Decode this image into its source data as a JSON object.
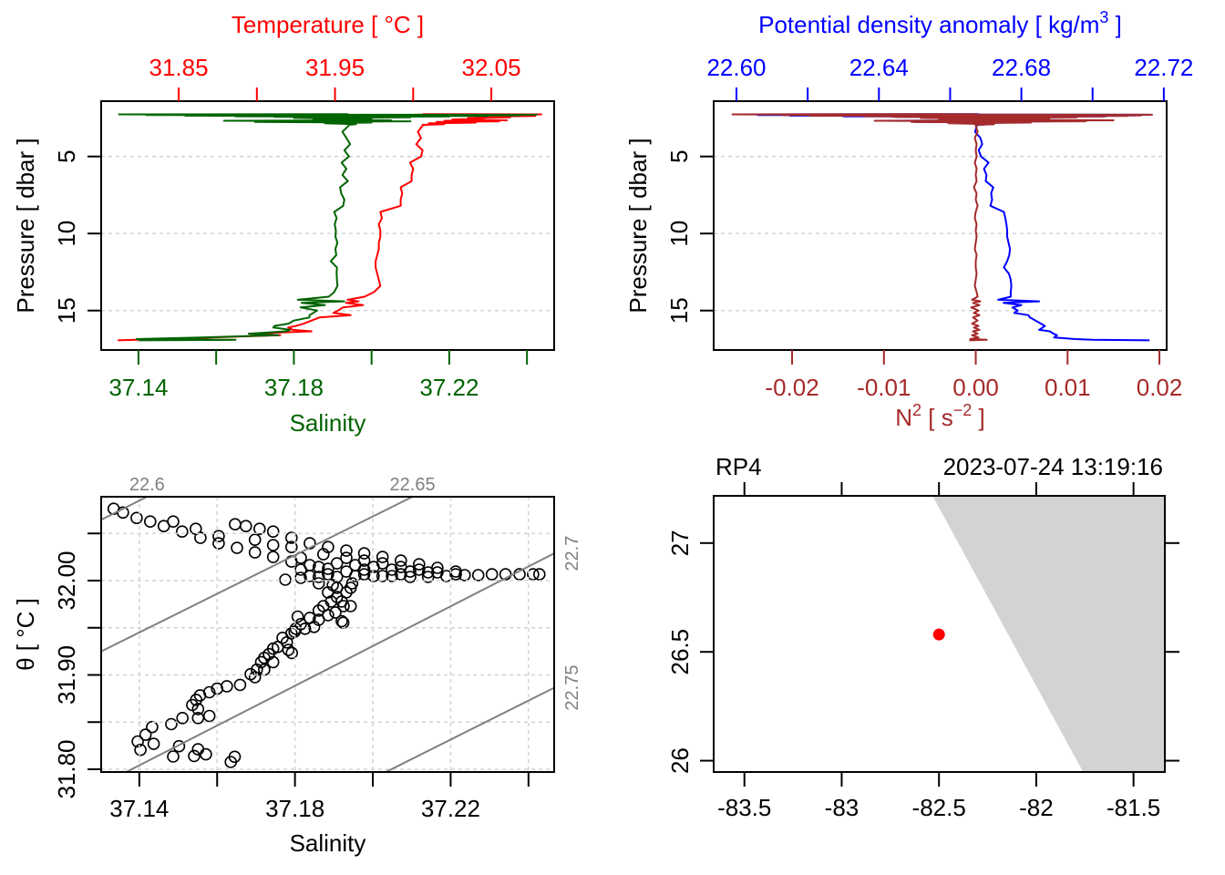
{
  "chart_data": [
    {
      "id": "temperature-salinity-profile",
      "type": "line",
      "ylabel": "Pressure [ dbar ]",
      "ylim": [
        17.56,
        1.41
      ],
      "yticks": [
        5,
        10,
        15
      ],
      "ytick_labels": [
        "5",
        "10",
        "15"
      ],
      "grid": "y",
      "x_top": {
        "label_parts": [
          {
            "text": "Temperature [ °C ]"
          }
        ],
        "color": "#FF0000",
        "lim": [
          31.8004,
          32.0902
        ],
        "ticks": [
          31.85,
          31.9,
          31.95,
          32.0,
          32.05
        ],
        "tick_labels": [
          "31.85",
          "",
          "31.95",
          "",
          "32.05"
        ]
      },
      "x_bottom": {
        "label_parts": [
          {
            "text": "Salinity"
          }
        ],
        "color": "#006400",
        "lim": [
          37.1304,
          37.247
        ],
        "ticks": [
          37.14,
          37.16,
          37.18,
          37.2,
          37.22,
          37.24
        ],
        "tick_labels": [
          "37.14",
          "",
          "37.18",
          "",
          "37.22",
          ""
        ]
      },
      "pressure": [
        2.25,
        2.27,
        2.29,
        2.31,
        2.33,
        2.35,
        2.37,
        2.39,
        2.41,
        2.43,
        2.46,
        2.5,
        2.55,
        2.6,
        2.65,
        2.68,
        2.72,
        2.76,
        2.8,
        2.85,
        2.9,
        2.95,
        3.0,
        3.4,
        3.8,
        4.2,
        4.6,
        5.0,
        5.4,
        5.8,
        6.2,
        6.6,
        7.0,
        7.4,
        7.8,
        8.2,
        8.6,
        9.0,
        9.4,
        9.8,
        10.2,
        10.6,
        11.0,
        11.4,
        11.8,
        12.2,
        12.6,
        13.0,
        13.4,
        13.8,
        14.1,
        14.3,
        14.4,
        14.5,
        14.65,
        14.8,
        15.0,
        15.15,
        15.3,
        15.45,
        15.65,
        15.85,
        16.0,
        16.1,
        16.25,
        16.35,
        16.5,
        16.6,
        16.75,
        16.85,
        16.9,
        16.93
      ],
      "series": [
        {
          "name": "Temperature",
          "axis": "top",
          "color": "#FF0000",
          "values": [
            32.006,
            32.082,
            32.001,
            32.074,
            31.999,
            32.066,
            32.078,
            32.058,
            32.04,
            32.05,
            32.062,
            32.035,
            32.045,
            32.025,
            32.06,
            32.02,
            32.055,
            32.015,
            32.04,
            32.01,
            32.02,
            32.006,
            32.006,
            32.003,
            32.005,
            32.002,
            32.006,
            32.005,
            31.998,
            32.0,
            31.999,
            31.999,
            31.992,
            31.993,
            31.992,
            31.992,
            31.979,
            31.98,
            31.978,
            31.979,
            31.979,
            31.978,
            31.978,
            31.977,
            31.976,
            31.976,
            31.977,
            31.978,
            31.979,
            31.975,
            31.969,
            31.958,
            31.965,
            31.957,
            31.968,
            31.955,
            31.952,
            31.949,
            31.96,
            31.94,
            31.935,
            31.93,
            31.925,
            31.92,
            31.923,
            31.935,
            31.895,
            31.915,
            31.87,
            31.86,
            31.823,
            31.811
          ]
        },
        {
          "name": "Salinity",
          "axis": "bottom",
          "color": "#006400",
          "values": [
            37.194,
            37.135,
            37.2425,
            37.142,
            37.238,
            37.152,
            37.23,
            37.165,
            37.22,
            37.175,
            37.21,
            37.18,
            37.2,
            37.185,
            37.205,
            37.162,
            37.21,
            37.17,
            37.2,
            37.188,
            37.196,
            37.1941,
            37.1941,
            37.1925,
            37.1935,
            37.1945,
            37.193,
            37.1942,
            37.1923,
            37.1935,
            37.1925,
            37.1939,
            37.1919,
            37.1922,
            37.193,
            37.1927,
            37.1904,
            37.191,
            37.1905,
            37.1908,
            37.1907,
            37.1912,
            37.1907,
            37.1909,
            37.1895,
            37.1911,
            37.191,
            37.1911,
            37.1912,
            37.1904,
            37.189,
            37.181,
            37.193,
            37.182,
            37.188,
            37.1817,
            37.186,
            37.185,
            37.184,
            37.184,
            37.18,
            37.1786,
            37.175,
            37.1747,
            37.179,
            37.178,
            37.1684,
            37.176,
            37.156,
            37.1395,
            37.165,
            37.14
          ]
        }
      ]
    },
    {
      "id": "density-n2-profile",
      "type": "line",
      "ylabel": "Pressure [ dbar ]",
      "ylim": [
        17.56,
        1.41
      ],
      "yticks": [
        5,
        10,
        15
      ],
      "ytick_labels": [
        "5",
        "10",
        "15"
      ],
      "grid": "y",
      "x_top": {
        "label_parts": [
          {
            "text": "Potential density anomaly [ kg/m"
          },
          {
            "text": "3",
            "sup": true
          },
          {
            "text": " ]"
          }
        ],
        "color": "#0000FF",
        "lim": [
          22.5936,
          22.7208
        ],
        "ticks": [
          22.6,
          22.62,
          22.64,
          22.66,
          22.68,
          22.7,
          22.72
        ],
        "tick_labels": [
          "22.60",
          "",
          "22.64",
          "",
          "22.68",
          "",
          "22.72"
        ]
      },
      "x_bottom": {
        "label_parts": [
          {
            "text": "N"
          },
          {
            "text": "2",
            "sup": true
          },
          {
            "text": " [ s"
          },
          {
            "text": "−2",
            "sup": true
          },
          {
            "text": " ]"
          }
        ],
        "color": "#A52A2A",
        "lim": [
          -0.02854,
          0.02079
        ],
        "ticks": [
          -0.02,
          -0.01,
          0.0,
          0.01,
          0.02
        ],
        "tick_labels": [
          "-0.02",
          "-0.01",
          "0.00",
          "0.01",
          "0.02"
        ]
      },
      "pressure": [
        2.25,
        2.27,
        2.29,
        2.31,
        2.33,
        2.35,
        2.37,
        2.39,
        2.41,
        2.43,
        2.46,
        2.5,
        2.55,
        2.6,
        2.65,
        2.68,
        2.72,
        2.76,
        2.8,
        2.85,
        2.9,
        2.95,
        3.0,
        3.4,
        3.8,
        4.2,
        4.6,
        5.0,
        5.4,
        5.8,
        6.2,
        6.6,
        7.0,
        7.4,
        7.8,
        8.2,
        8.6,
        9.0,
        9.4,
        9.8,
        10.2,
        10.6,
        11.0,
        11.4,
        11.8,
        12.2,
        12.6,
        13.0,
        13.4,
        13.8,
        14.1,
        14.3,
        14.4,
        14.5,
        14.65,
        14.8,
        15.0,
        15.15,
        15.3,
        15.45,
        15.65,
        15.85,
        16.0,
        16.1,
        16.25,
        16.35,
        16.5,
        16.6,
        16.75,
        16.85,
        16.9,
        16.93
      ],
      "series": [
        {
          "name": "Potential density anomaly",
          "axis": "top",
          "color": "#0000FF",
          "values": [
            22.668,
            22.599,
            22.716,
            22.606,
            22.712,
            22.615,
            22.704,
            22.63,
            22.695,
            22.645,
            22.688,
            22.655,
            22.68,
            22.66,
            22.693,
            22.64,
            22.688,
            22.65,
            22.676,
            22.664,
            22.672,
            22.6675,
            22.6675,
            22.667,
            22.6685,
            22.669,
            22.668,
            22.6687,
            22.6708,
            22.6695,
            22.6702,
            22.67,
            22.6721,
            22.6715,
            22.6718,
            22.6713,
            22.6751,
            22.6755,
            22.6758,
            22.676,
            22.676,
            22.6764,
            22.6768,
            22.6766,
            22.676,
            22.6751,
            22.6765,
            22.677,
            22.6772,
            22.677,
            22.677,
            22.6735,
            22.685,
            22.675,
            22.68,
            22.6775,
            22.679,
            22.678,
            22.682,
            22.6824,
            22.684,
            22.6855,
            22.6866,
            22.686,
            22.685,
            22.688,
            22.689,
            22.69,
            22.6892,
            22.6951,
            22.7,
            22.716
          ]
        },
        {
          "name": "N2",
          "axis": "bottom",
          "color": "#A52A2A",
          "values": [
            0.0,
            -0.0265,
            0.0192,
            -0.021,
            0.018,
            -0.018,
            0.0165,
            -0.012,
            0.014,
            -0.009,
            0.011,
            -0.006,
            0.008,
            -0.004,
            0.015,
            -0.011,
            0.012,
            -0.007,
            0.006,
            -0.003,
            0.002,
            0.0,
            0.0,
            0.0002,
            -0.0001,
            0.0001,
            0.0,
            0.0001,
            -0.0001,
            0.0001,
            0.0,
            0.0001,
            -0.0002,
            0.0001,
            0.0,
            0.0002,
            0.0,
            -0.0001,
            0.0001,
            0.0,
            0.0001,
            0.0,
            -0.0001,
            0.0001,
            0.0,
            0.0,
            0.0001,
            0.0,
            -0.0001,
            0.0001,
            0.0002,
            -0.0004,
            0.0005,
            -0.0003,
            0.0004,
            -0.0005,
            0.0003,
            -0.0002,
            0.0004,
            -0.0003,
            0.0002,
            -0.0004,
            0.0003,
            -0.0002,
            0.0004,
            -0.0003,
            0.0002,
            -0.0004,
            0.0003,
            -0.0006,
            0.0012,
            -0.0007
          ]
        }
      ]
    },
    {
      "id": "ts-diagram",
      "type": "scatter",
      "xlabel_parts": [
        {
          "text": "Salinity"
        }
      ],
      "ylabel_parts": [
        {
          "text": "θ [ °C ]"
        }
      ],
      "xlim": [
        37.1302,
        37.2466
      ],
      "ylim": [
        31.7971,
        32.0889
      ],
      "xticks": [
        37.14,
        37.16,
        37.18,
        37.2,
        37.22,
        37.24
      ],
      "xtick_labels": [
        "37.14",
        "",
        "37.18",
        "",
        "37.22",
        ""
      ],
      "yticks": [
        31.8,
        31.85,
        31.9,
        31.95,
        32.0,
        32.05
      ],
      "ytick_labels": [
        "31.80",
        "",
        "31.90",
        "",
        "32.00",
        ""
      ],
      "grid": "xy",
      "isopycnal_color": "#808080",
      "isopycnals": [
        {
          "label": "22.6",
          "points": [
            [
              37.1,
              32.002
            ],
            [
              37.16,
              32.1262
            ]
          ]
        },
        {
          "label": "22.65",
          "points": [
            [
              37.1,
              31.863
            ],
            [
              37.25,
              32.1705
            ]
          ]
        },
        {
          "label": "22.7",
          "points": [
            [
              37.12,
              31.762
            ],
            [
              37.26,
              32.0571
            ]
          ]
        },
        {
          "label": "22.75",
          "points": [
            [
              37.19,
              31.7695
            ],
            [
              37.26,
              31.9141
            ]
          ]
        }
      ],
      "points": {
        "salinity": [
          37.1659,
          37.1625,
          37.16,
          37.158,
          37.1556,
          37.1546,
          37.1536,
          37.1551,
          37.158,
          37.1551,
          37.1511,
          37.1482,
          37.1433,
          37.1416,
          37.1396,
          37.1403,
          37.1437,
          37.1502,
          37.1487,
          37.1541,
          37.1551,
          37.1571,
          37.1635,
          37.1645,
          37.1697,
          37.1713,
          37.1744,
          37.1783,
          37.1792,
          37.1799,
          37.1802,
          37.1807,
          37.1861,
          37.1893,
          37.1924,
          37.192,
          37.1925,
          37.1947,
          37.1334,
          37.1358,
          37.1393,
          37.1428,
          37.1463,
          37.151,
          37.1557,
          37.1604,
          37.1651,
          37.1697,
          37.1744,
          37.1791,
          37.1838,
          37.1885,
          37.1932,
          37.1978,
          37.2025,
          37.1646,
          37.1674,
          37.1709,
          37.1744,
          37.1791,
          37.1838,
          37.1885,
          37.1932,
          37.1978,
          37.2025,
          37.2072,
          37.2119,
          37.2166,
          37.2213,
          37.1775,
          37.1815,
          37.1861,
          37.1908,
          37.1955,
          37.2002,
          37.2049,
          37.2096,
          37.2142,
          37.2189,
          37.2236,
          37.2271,
          37.2306,
          37.2341,
          37.2377,
          37.2412,
          37.2428,
          37.1815,
          37.1861,
          37.1908,
          37.1955,
          37.2002,
          37.2049,
          37.2096,
          37.2142,
          37.1815,
          37.1873,
          37.1932,
          37.1744,
          37.1697,
          37.1604,
          37.1545,
          37.1487,
          37.1791,
          37.1861,
          37.1908,
          37.1932,
          37.1908,
          37.1885,
          37.1873,
          37.1904,
          37.1838,
          37.1815,
          37.1849,
          37.1768,
          37.1756,
          37.1733,
          37.1721,
          37.1686,
          37.1897,
          37.1943,
          37.192,
          37.1943,
          37.1885,
          37.1861,
          37.1826,
          37.1791,
          37.1779,
          37.1744,
          37.1721,
          37.1702,
          37.1978,
          37.2025,
          37.2072,
          37.2119,
          37.2166,
          37.2213,
          37.2072,
          37.1978,
          37.1885,
          37.1838
        ],
        "theta": [
          31.8895,
          31.888,
          31.8854,
          31.8816,
          31.8784,
          31.8736,
          31.8681,
          31.8639,
          31.8565,
          31.8543,
          31.8543,
          31.8478,
          31.8447,
          31.8366,
          31.8295,
          31.8206,
          31.827,
          31.8244,
          31.8135,
          31.8141,
          31.8212,
          31.8158,
          31.8077,
          31.8132,
          31.8976,
          31.9136,
          31.9136,
          31.9265,
          31.9233,
          31.9458,
          31.949,
          31.9618,
          31.9682,
          31.9779,
          31.9554,
          31.957,
          31.973,
          31.9971,
          32.0761,
          32.0722,
          32.0664,
          32.0626,
          32.0578,
          32.052,
          32.0453,
          32.0395,
          32.0347,
          32.0299,
          32.025,
          32.0202,
          32.0164,
          32.0125,
          32.0096,
          32.0067,
          32.0048,
          32.0597,
          32.0578,
          32.0549,
          32.052,
          32.0453,
          32.0395,
          32.0356,
          32.0318,
          32.0289,
          32.025,
          32.0212,
          32.0173,
          32.0135,
          32.0096,
          32.001,
          32.0029,
          32.0039,
          32.0039,
          32.0048,
          32.0048,
          32.0048,
          32.0039,
          32.0039,
          32.0048,
          32.0058,
          32.0058,
          32.0067,
          32.0067,
          32.0067,
          32.0067,
          32.0067,
          32.0116,
          32.0144,
          32.0183,
          32.0164,
          32.0144,
          32.0116,
          32.0096,
          32.0087,
          32.0241,
          32.0279,
          32.0241,
          32.0376,
          32.0433,
          32.0472,
          32.0549,
          32.0626,
          32.0356,
          31.9971,
          31.9923,
          31.9875,
          31.9827,
          31.9875,
          31.973,
          31.9663,
          31.9605,
          31.9538,
          31.9509,
          31.9393,
          31.9297,
          31.922,
          31.9056,
          31.9008,
          31.9952,
          31.9923,
          31.9779,
          31.973,
          31.9634,
          31.9586,
          31.949,
          31.9441,
          31.9345,
          31.9278,
          31.9181,
          31.9056,
          32.0212,
          32.0183,
          32.0144,
          32.0116,
          32.0087,
          32.0067,
          32.0067,
          32.0116,
          32.0067,
          32.0048
        ]
      }
    },
    {
      "id": "station-map",
      "type": "map",
      "xlim": [
        -83.658,
        -81.339
      ],
      "ylim": [
        25.948,
        27.217
      ],
      "xticks": [
        -83.5,
        -83,
        -82.5,
        -82,
        -81.5
      ],
      "xtick_labels": [
        "-83.5",
        "-83",
        "-82.5",
        "-82",
        "-81.5"
      ],
      "yticks": [
        26,
        26.5,
        27
      ],
      "ytick_labels": [
        "26",
        "26.5",
        "27"
      ],
      "top_left_label": "RP4",
      "top_right_label": "2023-07-24 13:19:16",
      "land_color": "#D3D3D3",
      "land": [
        [
          -82.614,
          27.35
        ],
        [
          -81.2,
          27.35
        ],
        [
          -81.2,
          25.8
        ],
        [
          -81.669,
          25.8
        ]
      ],
      "station": {
        "name": "RP4",
        "lon": -82.5,
        "lat": 26.58,
        "color": "#FF0000"
      }
    }
  ]
}
